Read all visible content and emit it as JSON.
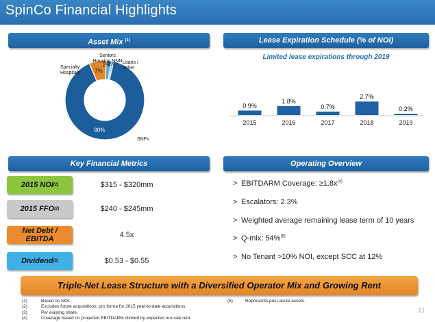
{
  "header": {
    "title": "SpinCo Financial Highlights"
  },
  "asset_mix": {
    "heading": "Asset Mix",
    "heading_note": "(1)",
    "labels": {
      "snf": "SNFs",
      "specialty": "Specialty Hospitals",
      "seniors": "Seniors Housing NNN",
      "loans": "Loans / Other"
    }
  },
  "lease": {
    "heading": "Lease Expiration Schedule (% of NOI)",
    "subtitle": "Limited lease expirations through 2019"
  },
  "chart_data": [
    {
      "type": "pie",
      "title": "Asset Mix",
      "slices": [
        {
          "label": "SNFs",
          "value": 90,
          "value_label": "90%",
          "color": "#1c5d9c"
        },
        {
          "label": "Specialty Hospitals",
          "value": 7,
          "value_label": "7%",
          "color": "#e2862a"
        },
        {
          "label": "Seniors Housing NNN",
          "value": 2,
          "value_label": "2%",
          "color": "#5aa7dc"
        },
        {
          "label": "Loans / Other",
          "value": 1,
          "value_label": "1%",
          "color": "#8fc9ec"
        }
      ]
    },
    {
      "type": "bar",
      "title": "Lease Expiration Schedule (% of NOI)",
      "categories": [
        "2015",
        "2016",
        "2017",
        "2018",
        "2019"
      ],
      "values": [
        0.9,
        1.8,
        0.7,
        2.7,
        0.2
      ],
      "value_labels": [
        "0.9%",
        "1.8%",
        "0.7%",
        "2.7%",
        "0.2%"
      ],
      "color": "#1f62a6"
    }
  ],
  "metrics": {
    "heading": "Key Financial Metrics",
    "rows": [
      {
        "label": "2015 NOI",
        "note": "(2)",
        "value": "$315 - $320mm",
        "color": "#8cc63f"
      },
      {
        "label": "2015 FFO",
        "note": "(2)",
        "value": "$240 - $245mm",
        "color": "#c9c9c9"
      },
      {
        "label": "Net Debt /",
        "label2": "EBITDA",
        "value": "4.5x",
        "color": "#e98b2e"
      },
      {
        "label": "Dividend",
        "note": "(3)",
        "value": "$0.53 - $0.55",
        "color": "#3fb1e6"
      }
    ]
  },
  "operating": {
    "heading": "Operating Overview",
    "items": [
      {
        "bullet": ">",
        "text": "EBITDARM Coverage: ≥1.8x",
        "note": "(4)"
      },
      {
        "bullet": ">",
        "text": "Escalators: 2.3%"
      },
      {
        "bullet": ">",
        "text": "Weighted average remaining lease term of 10 years"
      },
      {
        "bullet": ">",
        "text": "Q-mix: 54%",
        "note": "(5)"
      },
      {
        "bullet": ">",
        "text": "No Tenant >10% NOI, except SCC at 12%"
      }
    ]
  },
  "banner": {
    "text": "Triple-Net Lease Structure with a Diversified Operator Mix and Growing Rent"
  },
  "footnotes": [
    {
      "num": "(1)",
      "text": "Based on NOI."
    },
    {
      "num": "(2)",
      "text": "Excludes future acquisitions; pro forma for 2015 year-to-date acquisitions."
    },
    {
      "num": "(3)",
      "text": "Per existing share."
    },
    {
      "num": "(4)",
      "text": "Coverage based on projected EBITDARM divided by expected run-rate rent."
    },
    {
      "num": "(5)",
      "text": "Represents post-acute assets."
    }
  ],
  "page_number": "11"
}
